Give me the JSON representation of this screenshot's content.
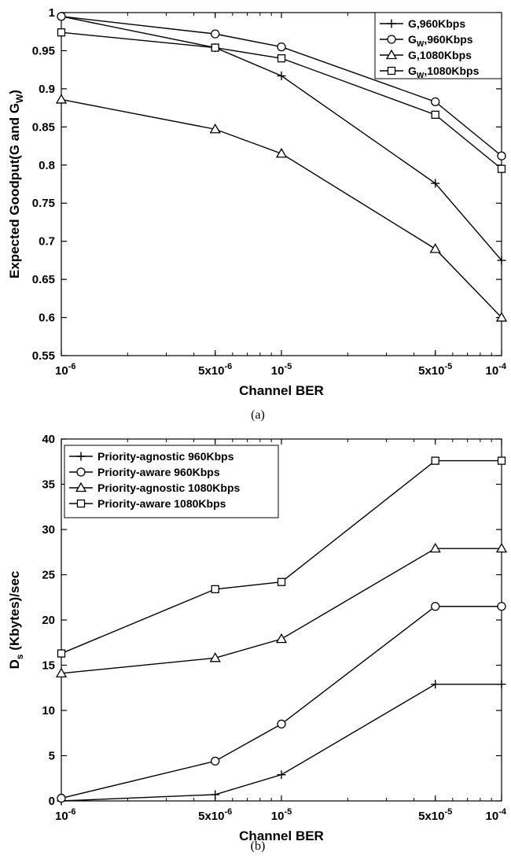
{
  "chart_data": [
    {
      "type": "line",
      "caption": "(a)",
      "xlabel": "Channel BER",
      "ylabel_parts": [
        "Expected Goodput(G and G",
        "W",
        ")"
      ],
      "xscale": "log",
      "xlim": [
        1e-06,
        0.0001
      ],
      "ylim": [
        0.55,
        1.0
      ],
      "x_ticks": [
        {
          "value": 1e-06,
          "base": "10",
          "exp": "-6"
        },
        {
          "value": 5e-06,
          "base": "5x10",
          "exp": "-6"
        },
        {
          "value": 1e-05,
          "base": "10",
          "exp": "-5"
        },
        {
          "value": 5e-05,
          "base": "5x10",
          "exp": "-5"
        },
        {
          "value": 0.0001,
          "base": "10",
          "exp": "-4"
        }
      ],
      "y_ticks": [
        "0.55",
        "0.6",
        "0.65",
        "0.7",
        "0.75",
        "0.8",
        "0.85",
        "0.9",
        "0.95",
        "1"
      ],
      "x": [
        1e-06,
        5e-06,
        1e-05,
        5e-05,
        0.0001
      ],
      "legend_position": "top-right",
      "grid": false,
      "series": [
        {
          "name": "G,960Kbps",
          "name_parts": [
            "G",
            "",
            ",960Kbps"
          ],
          "marker": "plus",
          "values": [
            0.995,
            0.954,
            0.917,
            0.776,
            0.675
          ]
        },
        {
          "name": "GW,960Kbps",
          "name_parts": [
            "G",
            "W",
            ",960Kbps"
          ],
          "marker": "circle",
          "values": [
            0.995,
            0.972,
            0.955,
            0.883,
            0.812
          ]
        },
        {
          "name": "G,1080Kbps",
          "name_parts": [
            "G",
            "",
            ",1080Kbps"
          ],
          "marker": "triangle",
          "values": [
            0.886,
            0.847,
            0.815,
            0.69,
            0.6
          ]
        },
        {
          "name": "GW,1080Kbps",
          "name_parts": [
            "G",
            "W",
            ",1080Kbps"
          ],
          "marker": "square",
          "values": [
            0.974,
            0.954,
            0.94,
            0.866,
            0.795
          ]
        }
      ]
    },
    {
      "type": "line",
      "caption": "(b)",
      "xlabel": "Channel BER",
      "ylabel_parts": [
        "D",
        "s",
        " (Kbytes)/sec"
      ],
      "xscale": "log",
      "xlim": [
        1e-06,
        0.0001
      ],
      "ylim": [
        0,
        40
      ],
      "x_ticks": [
        {
          "value": 1e-06,
          "base": "10",
          "exp": "-6"
        },
        {
          "value": 5e-06,
          "base": "5x10",
          "exp": "-6"
        },
        {
          "value": 1e-05,
          "base": "10",
          "exp": "-5"
        },
        {
          "value": 5e-05,
          "base": "5x10",
          "exp": "-5"
        },
        {
          "value": 0.0001,
          "base": "10",
          "exp": "-4"
        }
      ],
      "y_ticks": [
        "0",
        "5",
        "10",
        "15",
        "20",
        "25",
        "30",
        "35",
        "40"
      ],
      "x": [
        1e-06,
        5e-06,
        1e-05,
        5e-05,
        0.0001
      ],
      "legend_position": "top-left",
      "grid": false,
      "series": [
        {
          "name": "Priority-agnostic 960Kbps",
          "name_parts": [
            "Priority-agnostic 960Kbps",
            "",
            ""
          ],
          "marker": "plus",
          "values": [
            0.0,
            0.7,
            2.9,
            12.9,
            12.9
          ]
        },
        {
          "name": "Priority-aware 960Kbps",
          "name_parts": [
            "Priority-aware 960Kbps",
            "",
            ""
          ],
          "marker": "circle",
          "values": [
            0.3,
            4.4,
            8.5,
            21.5,
            21.5
          ]
        },
        {
          "name": "Priority-agnostic 1080Kbps",
          "name_parts": [
            "Priority-agnostic 1080Kbps",
            "",
            ""
          ],
          "marker": "triangle",
          "values": [
            14.1,
            15.8,
            17.9,
            27.9,
            27.9
          ]
        },
        {
          "name": "Priority-aware 1080Kbps",
          "name_parts": [
            "Priority-aware 1080Kbps",
            "",
            ""
          ],
          "marker": "square",
          "values": [
            16.3,
            23.4,
            24.2,
            37.6,
            37.6
          ]
        }
      ]
    }
  ]
}
